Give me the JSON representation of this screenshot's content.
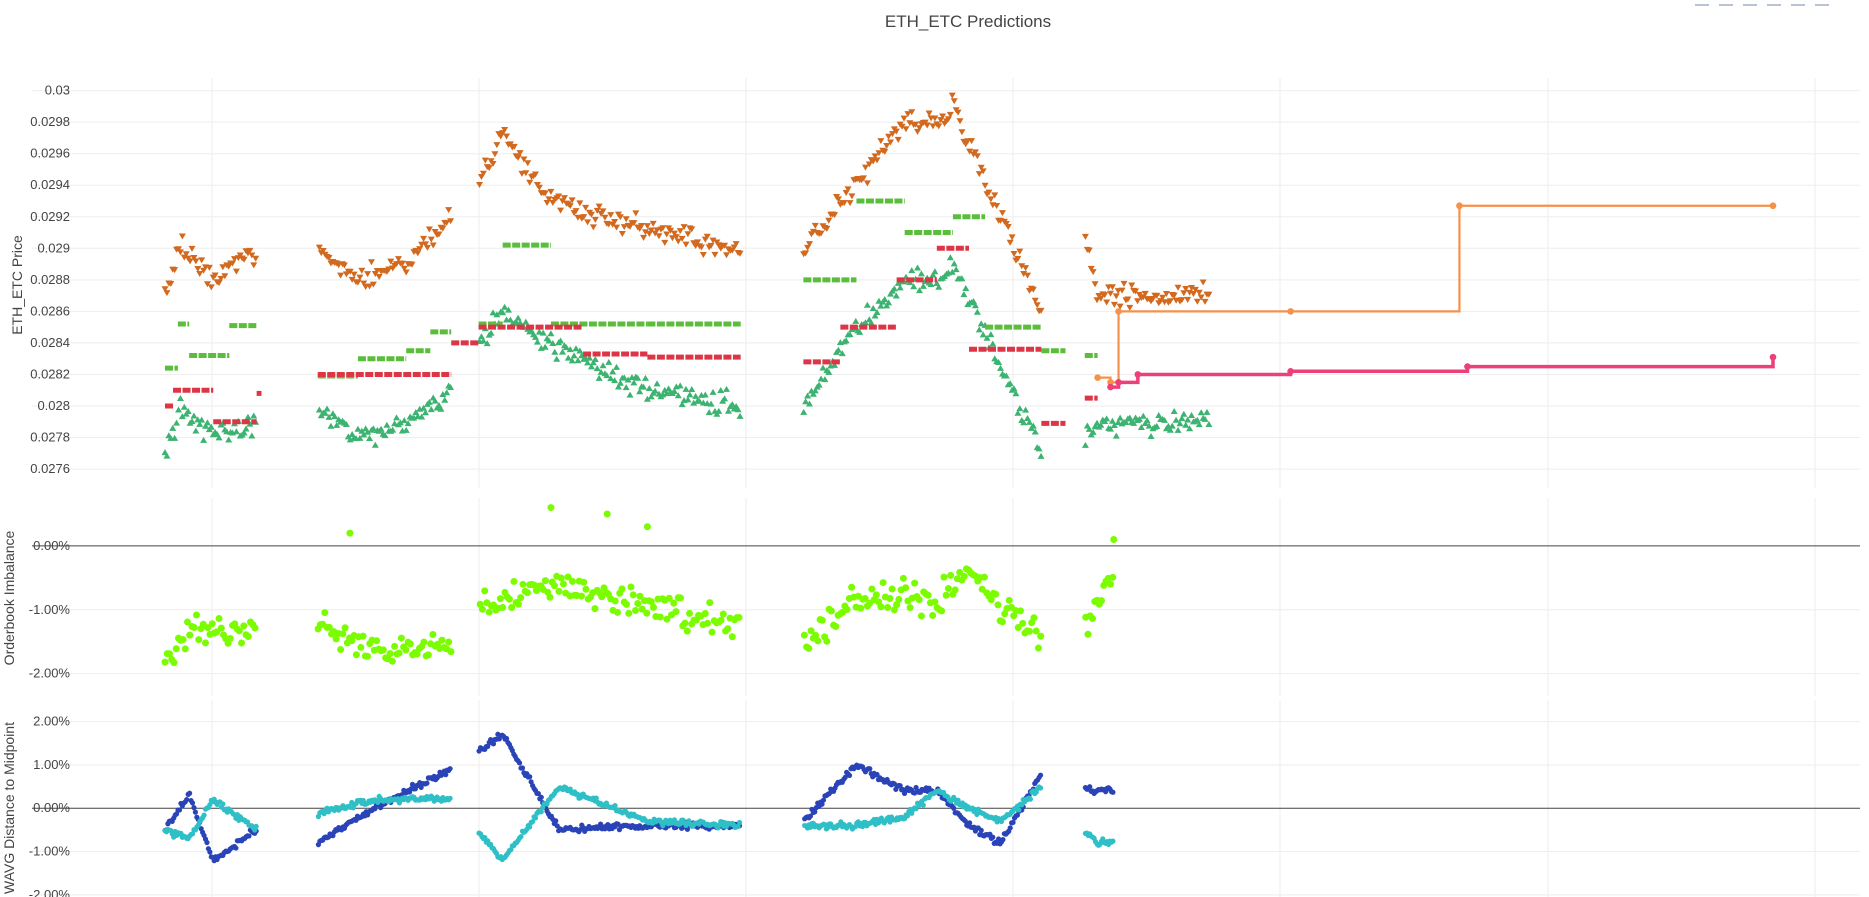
{
  "title": "ETH_ETC Predictions",
  "toolbar": {
    "icons": [
      "zoom-icon",
      "pan-icon",
      "zoom-in-icon",
      "zoom-out-icon",
      "autoscale-icon",
      "reset-axes-icon"
    ]
  },
  "colors": {
    "ask_markers": "#d2691e",
    "bid_markers": "#3cb371",
    "green_steps": "#5bbd3c",
    "red_steps": "#dc3545",
    "forecast_orange": "#f5914a",
    "forecast_pink": "#ec407a",
    "imbalance": "#7cfc00",
    "wavg_blue": "#2a44b8",
    "wavg_cyan": "#2fbfc6"
  },
  "chart_data": [
    {
      "type": "scatter",
      "panel": "price",
      "title": "ETH_ETC Predictions",
      "ylabel": "ETH_ETC Price",
      "xlabel": "",
      "ylim": [
        0.02748,
        0.03008
      ],
      "yticks": [
        "0.0276",
        "0.0278",
        "0.028",
        "0.0282",
        "0.0284",
        "0.0286",
        "0.0288",
        "0.029",
        "0.0292",
        "0.0294",
        "0.0296",
        "0.0298",
        "0.03"
      ],
      "grid": true,
      "x_range": [
        0,
        1000
      ],
      "segments": [
        [
          0,
          57
        ],
        [
          95,
          178
        ],
        [
          195,
          358
        ],
        [
          397,
          545
        ],
        [
          572,
          650
        ]
      ],
      "ask_anchors": [
        [
          0,
          0.0287
        ],
        [
          10,
          0.029
        ],
        [
          30,
          0.0288
        ],
        [
          57,
          0.029
        ],
        [
          95,
          0.029
        ],
        [
          120,
          0.0288
        ],
        [
          150,
          0.0289
        ],
        [
          178,
          0.0292
        ],
        [
          195,
          0.0294
        ],
        [
          210,
          0.0297
        ],
        [
          240,
          0.0293
        ],
        [
          300,
          0.0291
        ],
        [
          358,
          0.029
        ],
        [
          397,
          0.029
        ],
        [
          430,
          0.0294
        ],
        [
          460,
          0.0298
        ],
        [
          480,
          0.0298
        ],
        [
          490,
          0.0299
        ],
        [
          545,
          0.0286
        ],
        [
          572,
          0.0291
        ],
        [
          580,
          0.0287
        ]
      ],
      "bid_anchors": [
        [
          0,
          0.0277
        ],
        [
          10,
          0.028
        ],
        [
          30,
          0.0278
        ],
        [
          57,
          0.0279
        ],
        [
          95,
          0.028
        ],
        [
          120,
          0.0278
        ],
        [
          150,
          0.0279
        ],
        [
          178,
          0.0281
        ],
        [
          195,
          0.0284
        ],
        [
          210,
          0.0286
        ],
        [
          240,
          0.0284
        ],
        [
          300,
          0.0281
        ],
        [
          358,
          0.028
        ],
        [
          397,
          0.028
        ],
        [
          430,
          0.0285
        ],
        [
          460,
          0.0288
        ],
        [
          480,
          0.0288
        ],
        [
          490,
          0.0289
        ],
        [
          545,
          0.0277
        ],
        [
          572,
          0.0278
        ],
        [
          580,
          0.0279
        ]
      ],
      "green_steps": [
        [
          0,
          8,
          0.02824
        ],
        [
          8,
          15,
          0.02852
        ],
        [
          15,
          40,
          0.02832
        ],
        [
          40,
          57,
          0.02851
        ],
        [
          95,
          120,
          0.02819
        ],
        [
          120,
          150,
          0.0283
        ],
        [
          150,
          165,
          0.02835
        ],
        [
          165,
          178,
          0.02847
        ],
        [
          195,
          210,
          0.02852
        ],
        [
          210,
          240,
          0.02902
        ],
        [
          240,
          300,
          0.02852
        ],
        [
          300,
          358,
          0.02852
        ],
        [
          397,
          430,
          0.0288
        ],
        [
          430,
          460,
          0.0293
        ],
        [
          460,
          490,
          0.0291
        ],
        [
          490,
          510,
          0.0292
        ],
        [
          510,
          545,
          0.0285
        ],
        [
          545,
          560,
          0.02835
        ],
        [
          572,
          580,
          0.02832
        ]
      ],
      "red_steps": [
        [
          0,
          5,
          0.028
        ],
        [
          5,
          30,
          0.0281
        ],
        [
          30,
          57,
          0.0279
        ],
        [
          57,
          60,
          0.02808
        ],
        [
          95,
          178,
          0.0282
        ],
        [
          178,
          195,
          0.0284
        ],
        [
          195,
          260,
          0.0285
        ],
        [
          260,
          300,
          0.02833
        ],
        [
          300,
          358,
          0.02831
        ],
        [
          397,
          420,
          0.02828
        ],
        [
          420,
          455,
          0.0285
        ],
        [
          455,
          480,
          0.0288
        ],
        [
          480,
          500,
          0.029
        ],
        [
          500,
          545,
          0.02836
        ],
        [
          545,
          560,
          0.02789
        ],
        [
          572,
          580,
          0.02805
        ]
      ],
      "forecast_orange": [
        [
          580,
          0.02818
        ],
        [
          588,
          0.02815
        ],
        [
          593,
          0.0286
        ],
        [
          700,
          0.0286
        ],
        [
          805,
          0.02927
        ],
        [
          1000,
          0.02927
        ]
      ],
      "forecast_pink": [
        [
          588,
          0.02812
        ],
        [
          593,
          0.02815
        ],
        [
          605,
          0.0282
        ],
        [
          700,
          0.02822
        ],
        [
          810,
          0.02825
        ],
        [
          1000,
          0.02831
        ]
      ]
    },
    {
      "type": "scatter",
      "panel": "imbalance",
      "ylabel": "Orderbook Imbalance",
      "xlabel": "",
      "ylim": [
        -0.0235,
        0.0075
      ],
      "yticks": [
        "0.00%",
        "-1.00%",
        "-2.00%"
      ],
      "grid": true,
      "x_range": [
        0,
        1000
      ],
      "anchors": [
        [
          0,
          -0.018
        ],
        [
          15,
          -0.013
        ],
        [
          57,
          -0.014
        ],
        [
          95,
          -0.012
        ],
        [
          130,
          -0.016
        ],
        [
          178,
          -0.015
        ],
        [
          195,
          -0.01
        ],
        [
          240,
          -0.006
        ],
        [
          300,
          -0.009
        ],
        [
          358,
          -0.012
        ],
        [
          397,
          -0.016
        ],
        [
          430,
          -0.008
        ],
        [
          460,
          -0.008
        ],
        [
          480,
          -0.009
        ],
        [
          500,
          -0.004
        ],
        [
          520,
          -0.01
        ],
        [
          545,
          -0.014
        ],
        [
          575,
          -0.012
        ],
        [
          590,
          -0.004
        ]
      ],
      "outliers": [
        [
          115,
          0.002
        ],
        [
          240,
          0.006
        ],
        [
          275,
          0.005
        ],
        [
          300,
          0.003
        ],
        [
          590,
          0.001
        ]
      ]
    },
    {
      "type": "scatter",
      "panel": "wavg",
      "ylabel": "WAVG Distance to Midpoint",
      "xlabel": "",
      "ylim": [
        -0.0205,
        0.025
      ],
      "yticks": [
        "2.00%",
        "1.00%",
        "0.00%",
        "-1.00%",
        "-2.00%"
      ],
      "grid": true,
      "x_range": [
        0,
        1000
      ],
      "blue_anchors": [
        [
          0,
          -0.005
        ],
        [
          15,
          0.003
        ],
        [
          30,
          -0.012
        ],
        [
          57,
          -0.005
        ],
        [
          95,
          -0.008
        ],
        [
          130,
          0.0
        ],
        [
          178,
          0.009
        ],
        [
          210,
          0.017
        ],
        [
          245,
          -0.005
        ],
        [
          300,
          -0.004
        ],
        [
          358,
          -0.004
        ],
        [
          397,
          -0.003
        ],
        [
          430,
          0.01
        ],
        [
          460,
          0.004
        ],
        [
          480,
          0.004
        ],
        [
          500,
          -0.004
        ],
        [
          520,
          -0.008
        ],
        [
          545,
          0.008
        ],
        [
          580,
          0.004
        ]
      ],
      "cyan_anchors": [
        [
          0,
          -0.005
        ],
        [
          15,
          -0.007
        ],
        [
          30,
          0.002
        ],
        [
          57,
          -0.005
        ],
        [
          95,
          -0.001
        ],
        [
          130,
          0.002
        ],
        [
          178,
          0.002
        ],
        [
          210,
          -0.012
        ],
        [
          245,
          0.005
        ],
        [
          300,
          -0.003
        ],
        [
          358,
          -0.004
        ],
        [
          397,
          -0.004
        ],
        [
          430,
          -0.004
        ],
        [
          460,
          -0.002
        ],
        [
          480,
          0.004
        ],
        [
          500,
          0.0
        ],
        [
          520,
          -0.003
        ],
        [
          545,
          0.005
        ],
        [
          580,
          -0.008
        ]
      ]
    }
  ]
}
